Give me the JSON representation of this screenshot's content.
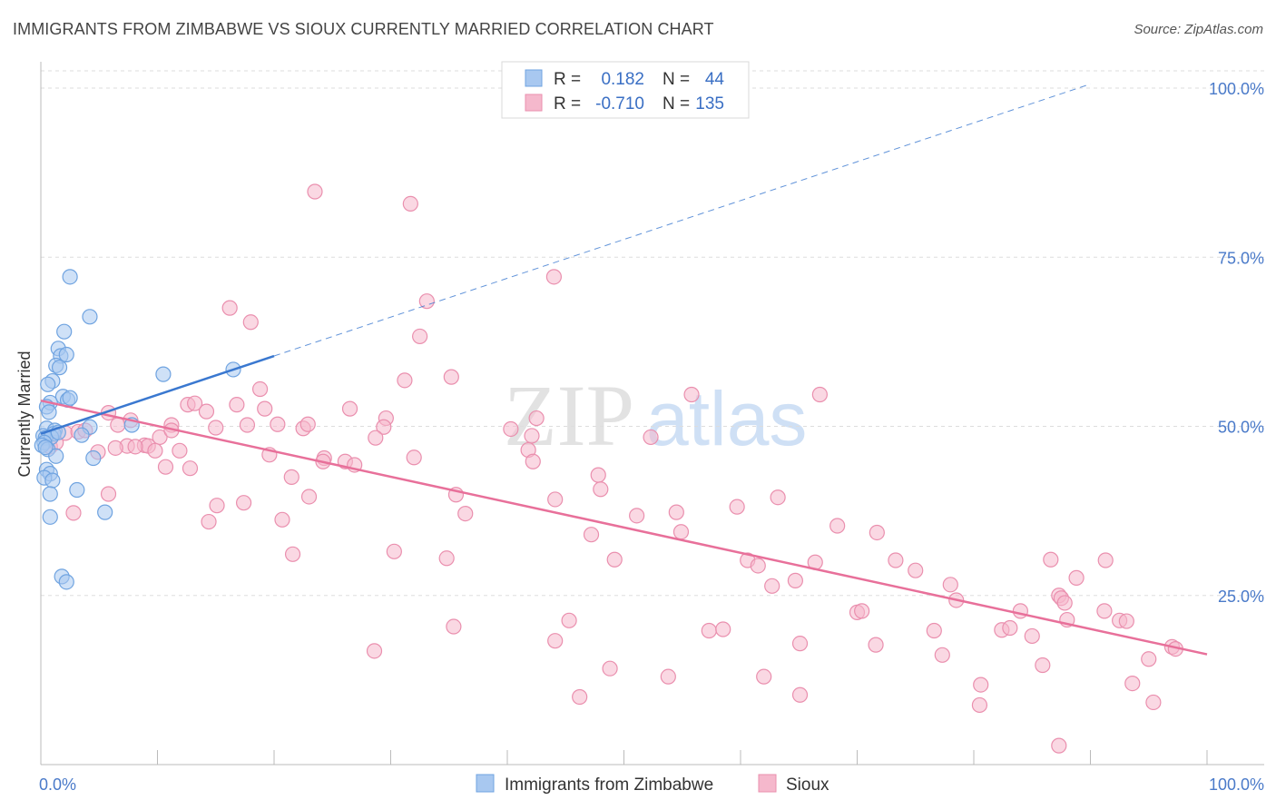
{
  "title": "IMMIGRANTS FROM ZIMBABWE VS SIOUX CURRENTLY MARRIED CORRELATION CHART",
  "source": "Source: ZipAtlas.com",
  "watermark": {
    "zip": "ZIP",
    "atlas": "atlas"
  },
  "colors": {
    "blue_fill": "#a8c8f0",
    "blue_stroke": "#6fa3e0",
    "blue_line": "#3a78d0",
    "pink_fill": "#f5b8cc",
    "pink_stroke": "#ea8fae",
    "pink_line": "#e8709a",
    "tick_color": "#4a7ac9",
    "grid": "#dddddd"
  },
  "legend": {
    "r_label": "R =",
    "n_label": "N =",
    "rows": [
      {
        "series": "blue",
        "r": "0.182",
        "n": "44"
      },
      {
        "series": "pink",
        "r": "-0.710",
        "n": "135"
      }
    ]
  },
  "chart_data": {
    "type": "scatter",
    "title": "IMMIGRANTS FROM ZIMBABWE VS SIOUX CURRENTLY MARRIED CORRELATION CHART",
    "xlabel": "",
    "ylabel": "Currently Married",
    "xlim": [
      0,
      100
    ],
    "ylim": [
      0,
      102.5
    ],
    "x_tick_labels": {
      "left": "0.0%",
      "right": "100.0%"
    },
    "y_ticks": [
      {
        "value": 25,
        "label": "25.0%"
      },
      {
        "value": 50,
        "label": "50.0%"
      },
      {
        "value": 75,
        "label": "75.0%"
      },
      {
        "value": 100,
        "label": "100.0%"
      }
    ],
    "series": [
      {
        "name": "Immigrants from Zimbabwe",
        "color": "blue",
        "trend": {
          "x0": 0,
          "y0": 48.9,
          "x1": 20,
          "y1": 60.4,
          "dash_x1": 90,
          "dash_y1": 100.6
        },
        "points": [
          [
            2.5,
            72.1
          ],
          [
            4.2,
            66.2
          ],
          [
            2.0,
            64.0
          ],
          [
            1.5,
            61.5
          ],
          [
            1.7,
            60.4
          ],
          [
            2.2,
            60.6
          ],
          [
            1.3,
            59.0
          ],
          [
            1.6,
            58.7
          ],
          [
            10.5,
            57.7
          ],
          [
            16.5,
            58.4
          ],
          [
            1.0,
            56.7
          ],
          [
            0.6,
            56.2
          ],
          [
            1.9,
            54.4
          ],
          [
            2.3,
            53.9
          ],
          [
            2.5,
            54.2
          ],
          [
            0.8,
            53.5
          ],
          [
            0.5,
            52.9
          ],
          [
            0.7,
            52.1
          ],
          [
            4.2,
            49.9
          ],
          [
            7.8,
            50.2
          ],
          [
            0.5,
            49.7
          ],
          [
            1.2,
            49.4
          ],
          [
            1.1,
            48.9
          ],
          [
            3.5,
            48.7
          ],
          [
            0.2,
            48.6
          ],
          [
            0.4,
            48.3
          ],
          [
            0.9,
            48.4
          ],
          [
            0.3,
            47.6
          ],
          [
            0.1,
            47.2
          ],
          [
            0.6,
            46.6
          ],
          [
            1.3,
            45.6
          ],
          [
            4.5,
            45.3
          ],
          [
            0.5,
            43.6
          ],
          [
            0.8,
            43.0
          ],
          [
            0.3,
            42.4
          ],
          [
            1.0,
            42.0
          ],
          [
            3.1,
            40.6
          ],
          [
            0.8,
            40.0
          ],
          [
            5.5,
            37.3
          ],
          [
            0.8,
            36.6
          ],
          [
            1.8,
            27.8
          ],
          [
            2.2,
            27.0
          ],
          [
            0.4,
            46.9
          ],
          [
            1.5,
            49.1
          ]
        ]
      },
      {
        "name": "Sioux",
        "color": "pink",
        "trend": {
          "x0": 0,
          "y0": 53.8,
          "x1": 100,
          "y1": 16.3
        },
        "points": [
          [
            23.5,
            84.7
          ],
          [
            31.7,
            82.9
          ],
          [
            44.0,
            72.1
          ],
          [
            16.2,
            67.5
          ],
          [
            18.0,
            65.4
          ],
          [
            33.1,
            68.5
          ],
          [
            32.5,
            63.3
          ],
          [
            31.2,
            56.8
          ],
          [
            35.2,
            57.3
          ],
          [
            18.8,
            55.5
          ],
          [
            55.8,
            54.7
          ],
          [
            66.8,
            54.7
          ],
          [
            5.8,
            52.0
          ],
          [
            12.6,
            53.2
          ],
          [
            13.2,
            53.4
          ],
          [
            14.2,
            52.2
          ],
          [
            16.8,
            53.2
          ],
          [
            19.2,
            52.6
          ],
          [
            26.5,
            52.6
          ],
          [
            29.6,
            51.2
          ],
          [
            7.7,
            50.9
          ],
          [
            11.2,
            50.2
          ],
          [
            15.0,
            49.8
          ],
          [
            17.7,
            50.2
          ],
          [
            20.3,
            50.3
          ],
          [
            22.5,
            49.7
          ],
          [
            22.9,
            50.3
          ],
          [
            29.4,
            49.9
          ],
          [
            40.3,
            49.6
          ],
          [
            42.1,
            48.6
          ],
          [
            52.3,
            48.4
          ],
          [
            2.1,
            49.0
          ],
          [
            3.2,
            49.2
          ],
          [
            3.8,
            49.4
          ],
          [
            6.6,
            50.2
          ],
          [
            10.2,
            48.4
          ],
          [
            11.2,
            49.4
          ],
          [
            0.8,
            47.0
          ],
          [
            1.3,
            47.6
          ],
          [
            4.9,
            46.2
          ],
          [
            7.4,
            47.1
          ],
          [
            8.9,
            47.2
          ],
          [
            9.2,
            47.1
          ],
          [
            9.8,
            46.4
          ],
          [
            11.9,
            46.4
          ],
          [
            19.6,
            45.8
          ],
          [
            24.3,
            45.3
          ],
          [
            26.1,
            44.8
          ],
          [
            26.9,
            44.3
          ],
          [
            32.0,
            45.4
          ],
          [
            41.8,
            46.5
          ],
          [
            42.2,
            44.8
          ],
          [
            10.7,
            44.0
          ],
          [
            12.8,
            43.8
          ],
          [
            21.5,
            42.5
          ],
          [
            47.8,
            42.8
          ],
          [
            5.8,
            40.0
          ],
          [
            23.0,
            39.6
          ],
          [
            35.6,
            39.9
          ],
          [
            44.1,
            39.2
          ],
          [
            48.0,
            40.7
          ],
          [
            15.1,
            38.3
          ],
          [
            17.4,
            38.7
          ],
          [
            36.4,
            37.1
          ],
          [
            51.1,
            36.8
          ],
          [
            54.5,
            37.3
          ],
          [
            59.7,
            38.1
          ],
          [
            63.2,
            39.5
          ],
          [
            2.8,
            37.2
          ],
          [
            14.4,
            35.9
          ],
          [
            20.7,
            36.2
          ],
          [
            47.2,
            34.0
          ],
          [
            54.9,
            34.4
          ],
          [
            68.3,
            35.3
          ],
          [
            71.7,
            34.3
          ],
          [
            21.6,
            31.1
          ],
          [
            30.3,
            31.5
          ],
          [
            34.8,
            30.5
          ],
          [
            49.2,
            30.3
          ],
          [
            60.6,
            30.2
          ],
          [
            61.5,
            29.4
          ],
          [
            66.4,
            29.9
          ],
          [
            73.3,
            30.2
          ],
          [
            86.6,
            30.3
          ],
          [
            91.3,
            30.2
          ],
          [
            64.7,
            27.2
          ],
          [
            75.0,
            28.7
          ],
          [
            78.0,
            26.6
          ],
          [
            78.5,
            24.3
          ],
          [
            88.8,
            27.6
          ],
          [
            84.0,
            22.7
          ],
          [
            87.3,
            25.0
          ],
          [
            87.5,
            24.6
          ],
          [
            87.8,
            23.9
          ],
          [
            88.0,
            21.4
          ],
          [
            91.2,
            22.7
          ],
          [
            92.5,
            21.3
          ],
          [
            70.0,
            22.5
          ],
          [
            70.4,
            22.7
          ],
          [
            62.7,
            26.4
          ],
          [
            35.4,
            20.4
          ],
          [
            57.3,
            19.8
          ],
          [
            58.5,
            20.0
          ],
          [
            76.6,
            19.8
          ],
          [
            82.4,
            19.9
          ],
          [
            83.1,
            20.2
          ],
          [
            85.0,
            19.0
          ],
          [
            93.1,
            21.2
          ],
          [
            28.6,
            16.8
          ],
          [
            45.3,
            21.3
          ],
          [
            65.1,
            17.9
          ],
          [
            71.6,
            17.7
          ],
          [
            77.3,
            16.2
          ],
          [
            97.0,
            17.4
          ],
          [
            44.1,
            18.3
          ],
          [
            95.0,
            15.6
          ],
          [
            48.8,
            14.2
          ],
          [
            53.8,
            13.0
          ],
          [
            62.0,
            13.0
          ],
          [
            85.9,
            14.7
          ],
          [
            80.6,
            11.8
          ],
          [
            93.6,
            12.0
          ],
          [
            46.2,
            10.0
          ],
          [
            65.1,
            10.3
          ],
          [
            80.5,
            8.8
          ],
          [
            95.4,
            9.2
          ],
          [
            87.3,
            2.8
          ],
          [
            8.1,
            47.0
          ],
          [
            6.4,
            46.8
          ],
          [
            24.2,
            44.8
          ],
          [
            28.7,
            48.3
          ],
          [
            42.5,
            51.2
          ],
          [
            97.3,
            17.1
          ]
        ]
      }
    ]
  },
  "bottom_legend": [
    {
      "series": "blue",
      "label": "Immigrants from Zimbabwe"
    },
    {
      "series": "pink",
      "label": "Sioux"
    }
  ]
}
